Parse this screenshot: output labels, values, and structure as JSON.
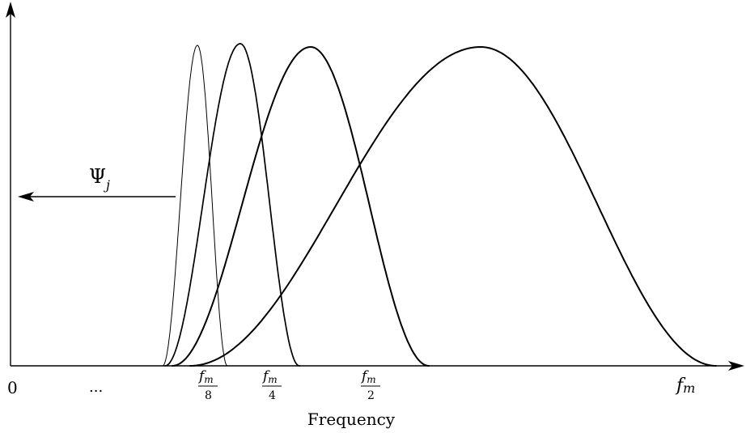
{
  "diagram": {
    "x_axis_label": "Frequency",
    "origin_label": "0",
    "ellipsis_label": "...",
    "end_label_base": "f",
    "end_label_sub": "m",
    "fraction_labels": [
      {
        "num_base": "f",
        "num_sub": "m",
        "den": "8"
      },
      {
        "num_base": "f",
        "num_sub": "m",
        "den": "4"
      },
      {
        "num_base": "f",
        "num_sub": "m",
        "den": "2"
      }
    ],
    "psi_label_base": "Ψ",
    "psi_label_sub": "j",
    "curves": [
      {
        "name": "band-fm-8",
        "center": 0.125
      },
      {
        "name": "band-fm-4",
        "center": 0.25
      },
      {
        "name": "band-fm-2",
        "center": 0.5
      },
      {
        "name": "band-fm",
        "center": 1.0
      }
    ]
  }
}
